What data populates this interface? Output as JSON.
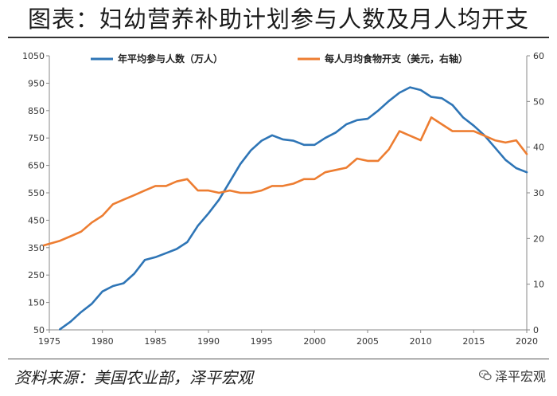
{
  "title": "图表：妇幼营养补助计划参与人数及月人均开支",
  "source": "资料来源：美国农业部，泽平宏观",
  "watermark": "泽平宏观",
  "chart_data": {
    "type": "line",
    "xlim": [
      1975,
      2020
    ],
    "ylim_left": [
      50,
      1050
    ],
    "ylim_right": [
      0,
      60
    ],
    "x_ticks": [
      "1975",
      "1980",
      "1985",
      "1990",
      "1995",
      "2000",
      "2005",
      "2010",
      "2015",
      "2020"
    ],
    "y_left_ticks": [
      "50",
      "150",
      "250",
      "350",
      "450",
      "550",
      "650",
      "750",
      "850",
      "950",
      "1050"
    ],
    "y_right_ticks": [
      "0",
      "10",
      "20",
      "30",
      "40",
      "50",
      "60"
    ],
    "series": [
      {
        "name": "年平均参与人数（万人）",
        "axis": "left",
        "color": "#2e75b6",
        "x": [
          1976,
          1977,
          1978,
          1979,
          1980,
          1981,
          1982,
          1983,
          1984,
          1985,
          1986,
          1987,
          1988,
          1989,
          1990,
          1991,
          1992,
          1993,
          1994,
          1995,
          1996,
          1997,
          1998,
          1999,
          2000,
          2001,
          2002,
          2003,
          2004,
          2005,
          2006,
          2007,
          2008,
          2009,
          2010,
          2011,
          2012,
          2013,
          2014,
          2015,
          2016,
          2017,
          2018,
          2019,
          2020
        ],
        "values": [
          52,
          80,
          115,
          145,
          190,
          210,
          220,
          255,
          305,
          315,
          330,
          345,
          370,
          430,
          475,
          525,
          590,
          655,
          705,
          740,
          760,
          745,
          740,
          725,
          725,
          750,
          770,
          800,
          815,
          820,
          850,
          885,
          915,
          935,
          925,
          900,
          895,
          870,
          825,
          795,
          760,
          715,
          670,
          640,
          625
        ]
      },
      {
        "name": "每人月均食物开支（美元，右轴）",
        "axis": "right",
        "color": "#ed7d31",
        "x": [
          1974.5,
          1976,
          1977,
          1978,
          1979,
          1980,
          1981,
          1982,
          1983,
          1984,
          1985,
          1986,
          1987,
          1988,
          1989,
          1990,
          1991,
          1992,
          1993,
          1994,
          1995,
          1996,
          1997,
          1998,
          1999,
          2000,
          2001,
          2002,
          2003,
          2004,
          2005,
          2006,
          2007,
          2008,
          2009,
          2010,
          2011,
          2012,
          2013,
          2014,
          2015,
          2016,
          2017,
          2018,
          2019,
          2020
        ],
        "values": [
          18.5,
          19.5,
          20.5,
          21.5,
          23.5,
          25,
          27.5,
          28.5,
          29.5,
          30.5,
          31.5,
          31.5,
          32.5,
          33,
          30.5,
          30.5,
          30,
          30.5,
          30,
          30,
          30.5,
          31.5,
          31.5,
          32,
          33,
          33,
          34.5,
          35,
          35.5,
          37.5,
          37,
          37,
          39.5,
          43.5,
          42.5,
          41.5,
          46.5,
          45,
          43.5,
          43.5,
          43.5,
          42.5,
          41.5,
          41,
          41.5,
          38.5
        ]
      }
    ]
  }
}
